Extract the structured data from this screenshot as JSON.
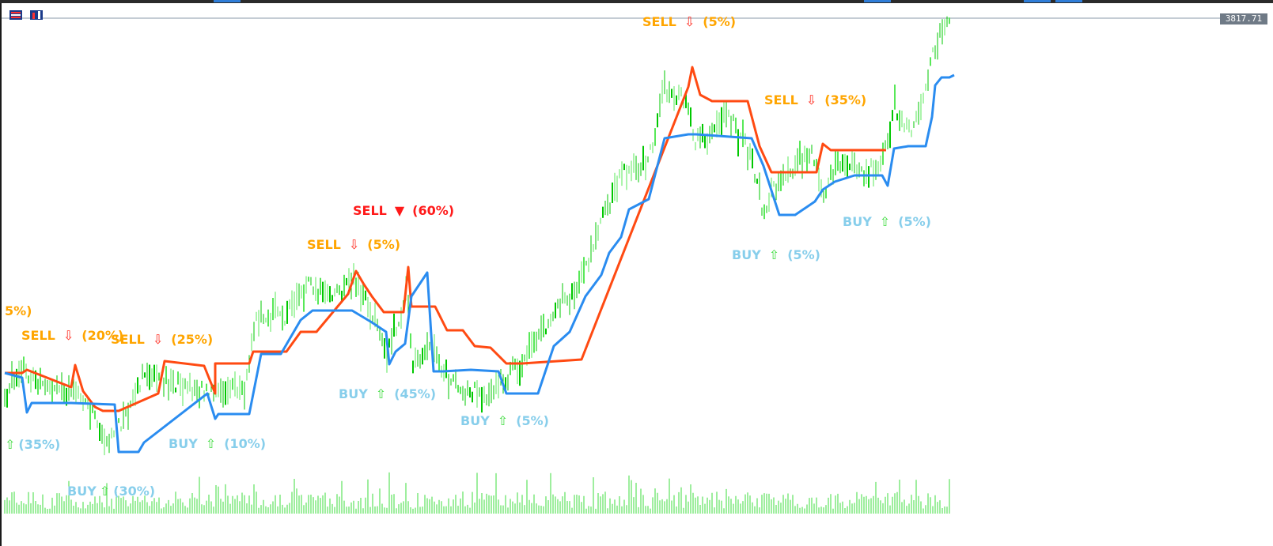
{
  "chart_title": "",
  "current_price": "3817.71",
  "toolbar": {
    "icons": [
      "grid-icon",
      "bar-chart-icon"
    ]
  },
  "colors": {
    "candle": "#00c800",
    "candle_alt": "#58e858",
    "volume": "#3cdc3c",
    "resistance_line": "#ff4a12",
    "support_line": "#2a8cf0",
    "sell_label": "#ffa500",
    "sell_strong_label": "#ff1a1a",
    "buy_label": "#87ceeb",
    "up_arrow": "#44dd44",
    "down_arrow": "#ff2b1f",
    "price_line": "#8899aa"
  },
  "signals": [
    {
      "type": "sell",
      "text": "SELL",
      "arrow": "⇩",
      "pct": "(5%)"
    },
    {
      "type": "sell",
      "text": "SELL",
      "arrow": "⇩",
      "pct": "(35%)"
    },
    {
      "type": "sell-strong",
      "text": "SELL",
      "arrow": "▼",
      "pct": "(60%)"
    },
    {
      "type": "sell",
      "text": "SELL",
      "arrow": "⇩",
      "pct": "(5%)"
    },
    {
      "type": "sell",
      "text": "",
      "arrow": "",
      "pct": "5%)"
    },
    {
      "type": "sell",
      "text": "SELL",
      "arrow": "⇩",
      "pct": "(20%)"
    },
    {
      "type": "sell",
      "text": "SELL",
      "arrow": "⇩",
      "pct": "(25%)"
    },
    {
      "type": "buy",
      "text": "BUY",
      "arrow": "⇧",
      "pct": "(5%)"
    },
    {
      "type": "buy",
      "text": "BUY",
      "arrow": "⇧",
      "pct": "(5%)"
    },
    {
      "type": "buy",
      "text": "BUY",
      "arrow": "⇧",
      "pct": "(45%)"
    },
    {
      "type": "buy",
      "text": "BUY",
      "arrow": "⇧",
      "pct": "(5%)"
    },
    {
      "type": "buy",
      "text": "",
      "arrow": "⇧",
      "pct": "(35%)"
    },
    {
      "type": "buy",
      "text": "BUY",
      "arrow": "⇧",
      "pct": "(10%)"
    },
    {
      "type": "buy",
      "text": "BUY",
      "arrow": "⇧",
      "pct": "(30%)"
    }
  ]
}
